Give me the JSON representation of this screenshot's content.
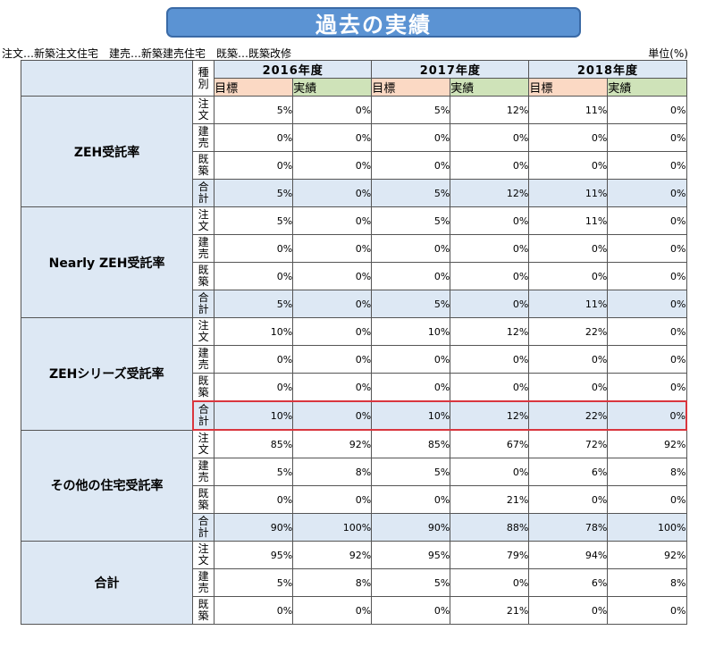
{
  "title": "過去の実績",
  "legend": "注文…新築注文住宅　建売…新築建売住宅　既築…既築改修",
  "unit": "単位(%)",
  "type_header": [
    "種",
    "別"
  ],
  "years": [
    "2016年度",
    "2017年度",
    "2018年度"
  ],
  "target_label": "目標",
  "actual_label": "実績",
  "categories": [
    {
      "name": "ZEH受託率",
      "rows": [
        {
          "type": [
            "注",
            "文"
          ],
          "values": [
            "5%",
            "0%",
            "5%",
            "12%",
            "11%",
            "0%"
          ]
        },
        {
          "type": [
            "建",
            "売"
          ],
          "values": [
            "0%",
            "0%",
            "0%",
            "0%",
            "0%",
            "0%"
          ]
        },
        {
          "type": [
            "既",
            "築"
          ],
          "values": [
            "0%",
            "0%",
            "0%",
            "0%",
            "0%",
            "0%"
          ]
        },
        {
          "type": [
            "合",
            "計"
          ],
          "values": [
            "5%",
            "0%",
            "5%",
            "12%",
            "11%",
            "0%"
          ],
          "total": true
        }
      ]
    },
    {
      "name": "Nearly ZEH受託率",
      "rows": [
        {
          "type": [
            "注",
            "文"
          ],
          "values": [
            "5%",
            "0%",
            "5%",
            "0%",
            "11%",
            "0%"
          ]
        },
        {
          "type": [
            "建",
            "売"
          ],
          "values": [
            "0%",
            "0%",
            "0%",
            "0%",
            "0%",
            "0%"
          ]
        },
        {
          "type": [
            "既",
            "築"
          ],
          "values": [
            "0%",
            "0%",
            "0%",
            "0%",
            "0%",
            "0%"
          ]
        },
        {
          "type": [
            "合",
            "計"
          ],
          "values": [
            "5%",
            "0%",
            "5%",
            "0%",
            "11%",
            "0%"
          ],
          "total": true
        }
      ]
    },
    {
      "name": "ZEHシリーズ受託率",
      "rows": [
        {
          "type": [
            "注",
            "文"
          ],
          "values": [
            "10%",
            "0%",
            "10%",
            "12%",
            "22%",
            "0%"
          ]
        },
        {
          "type": [
            "建",
            "売"
          ],
          "values": [
            "0%",
            "0%",
            "0%",
            "0%",
            "0%",
            "0%"
          ]
        },
        {
          "type": [
            "既",
            "築"
          ],
          "values": [
            "0%",
            "0%",
            "0%",
            "0%",
            "0%",
            "0%"
          ]
        },
        {
          "type": [
            "合",
            "計"
          ],
          "values": [
            "10%",
            "0%",
            "10%",
            "12%",
            "22%",
            "0%"
          ],
          "total": true,
          "highlight": true
        }
      ]
    },
    {
      "name": "その他の住宅受託率",
      "rows": [
        {
          "type": [
            "注",
            "文"
          ],
          "values": [
            "85%",
            "92%",
            "85%",
            "67%",
            "72%",
            "92%"
          ]
        },
        {
          "type": [
            "建",
            "売"
          ],
          "values": [
            "5%",
            "8%",
            "5%",
            "0%",
            "6%",
            "8%"
          ]
        },
        {
          "type": [
            "既",
            "築"
          ],
          "values": [
            "0%",
            "0%",
            "0%",
            "21%",
            "0%",
            "0%"
          ]
        },
        {
          "type": [
            "合",
            "計"
          ],
          "values": [
            "90%",
            "100%",
            "90%",
            "88%",
            "78%",
            "100%"
          ],
          "total": true
        }
      ]
    },
    {
      "name": "合計",
      "rows": [
        {
          "type": [
            "注",
            "文"
          ],
          "values": [
            "95%",
            "92%",
            "95%",
            "79%",
            "94%",
            "92%"
          ]
        },
        {
          "type": [
            "建",
            "売"
          ],
          "values": [
            "5%",
            "8%",
            "5%",
            "0%",
            "6%",
            "8%"
          ]
        },
        {
          "type": [
            "既",
            "築"
          ],
          "values": [
            "0%",
            "0%",
            "0%",
            "21%",
            "0%",
            "0%"
          ]
        }
      ]
    }
  ]
}
